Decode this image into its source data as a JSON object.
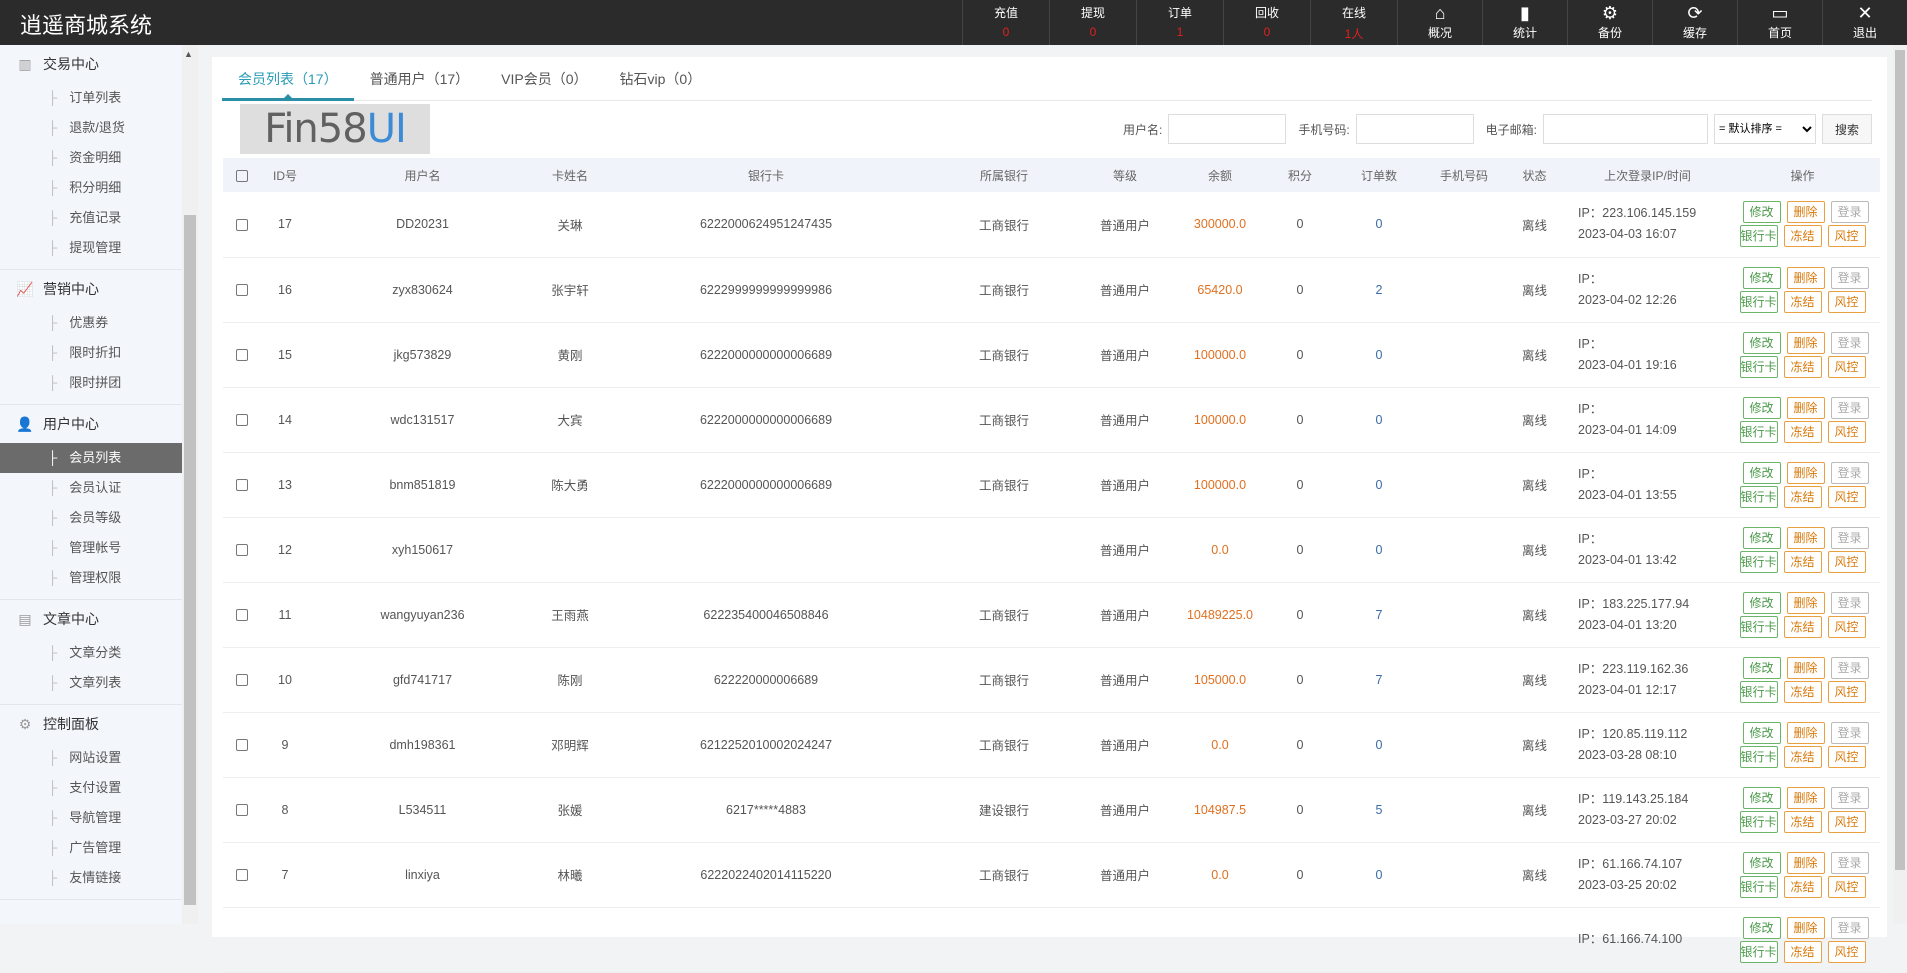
{
  "header": {
    "title": "逍遥商城系统",
    "stats": [
      {
        "label": "充值",
        "value": "0"
      },
      {
        "label": "提现",
        "value": "0"
      },
      {
        "label": "订单",
        "value": "1"
      },
      {
        "label": "回收",
        "value": "0"
      },
      {
        "label": "在线",
        "value": "1人"
      }
    ],
    "tools": [
      {
        "icon": "home-icon",
        "glyph": "⌂",
        "label": "概况"
      },
      {
        "icon": "bar-chart-icon",
        "glyph": "▮",
        "label": "统计"
      },
      {
        "icon": "gear-icon",
        "glyph": "⚙",
        "label": "备份"
      },
      {
        "icon": "refresh-icon",
        "glyph": "⟳",
        "label": "缓存"
      },
      {
        "icon": "monitor-icon",
        "glyph": "▭",
        "label": "首页"
      },
      {
        "icon": "close-icon",
        "glyph": "✕",
        "label": "退出"
      }
    ]
  },
  "sidebar": {
    "groups": [
      {
        "icon": "bar-chart-icon",
        "glyph": "▥",
        "title": "交易中心",
        "items": [
          "订单列表",
          "退款/退货",
          "资金明细",
          "积分明细",
          "充值记录",
          "提现管理"
        ]
      },
      {
        "icon": "trend-chart-icon",
        "glyph": "📈",
        "title": "营销中心",
        "items": [
          "优惠券",
          "限时折扣",
          "限时拼团"
        ]
      },
      {
        "icon": "user-icon",
        "glyph": "👤",
        "title": "用户中心",
        "items": [
          "会员列表",
          "会员认证",
          "会员等级",
          "管理帐号",
          "管理权限"
        ]
      },
      {
        "icon": "document-icon",
        "glyph": "▤",
        "title": "文章中心",
        "items": [
          "文章分类",
          "文章列表"
        ]
      },
      {
        "icon": "gear-icon",
        "glyph": "⚙",
        "title": "控制面板",
        "items": [
          "网站设置",
          "支付设置",
          "导航管理",
          "广告管理",
          "友情链接"
        ]
      }
    ],
    "active": "会员列表"
  },
  "tabs": [
    "会员列表（17）",
    "普通用户（17）",
    "VIP会员（0）",
    "钻石vip（0）"
  ],
  "search": {
    "username_label": "用户名:",
    "phone_label": "手机号码:",
    "email_label": "电子邮箱:",
    "username": "",
    "phone": "",
    "email": "",
    "sort": "= 默认排序 =",
    "button": "搜索"
  },
  "table": {
    "headers": [
      "ID号",
      "用户名",
      "卡姓名",
      "银行卡",
      "所属银行",
      "等级",
      "余额",
      "积分",
      "订单数",
      "手机号码",
      "状态",
      "上次登录IP/时间",
      "操作"
    ],
    "actions": [
      "修改",
      "删除",
      "登录",
      "银行卡",
      "冻结",
      "风控"
    ],
    "rows": [
      {
        "id": "17",
        "username": "DD20231",
        "name": "关琳",
        "card": "6222000624951247435",
        "bank": "工商银行",
        "level": "普通用户",
        "balance": "300000.0",
        "points": "0",
        "orders": "0",
        "phone": "",
        "status": "离线",
        "ip": "IP：223.106.145.159",
        "time": "2023-04-03 16:07"
      },
      {
        "id": "16",
        "username": "zyx830624",
        "name": "张宇轩",
        "card": "6222999999999999986",
        "bank": "工商银行",
        "level": "普通用户",
        "balance": "65420.0",
        "points": "0",
        "orders": "2",
        "phone": "",
        "status": "离线",
        "ip": "IP：",
        "time": "2023-04-02 12:26"
      },
      {
        "id": "15",
        "username": "jkg573829",
        "name": "黄刚",
        "card": "6222000000000006689",
        "bank": "工商银行",
        "level": "普通用户",
        "balance": "100000.0",
        "points": "0",
        "orders": "0",
        "phone": "",
        "status": "离线",
        "ip": "IP：",
        "time": "2023-04-01 19:16"
      },
      {
        "id": "14",
        "username": "wdc131517",
        "name": "大宾",
        "card": "6222000000000006689",
        "bank": "工商银行",
        "level": "普通用户",
        "balance": "100000.0",
        "points": "0",
        "orders": "0",
        "phone": "",
        "status": "离线",
        "ip": "IP：",
        "time": "2023-04-01 14:09"
      },
      {
        "id": "13",
        "username": "bnm851819",
        "name": "陈大勇",
        "card": "6222000000000006689",
        "bank": "工商银行",
        "level": "普通用户",
        "balance": "100000.0",
        "points": "0",
        "orders": "0",
        "phone": "",
        "status": "离线",
        "ip": "IP：",
        "time": "2023-04-01 13:55"
      },
      {
        "id": "12",
        "username": "xyh150617",
        "name": "",
        "card": "",
        "bank": "",
        "level": "普通用户",
        "balance": "0.0",
        "points": "0",
        "orders": "0",
        "phone": "",
        "status": "离线",
        "ip": "IP：",
        "time": "2023-04-01 13:42"
      },
      {
        "id": "11",
        "username": "wangyuyan236",
        "name": "王雨燕",
        "card": "622235400046508846",
        "bank": "工商银行",
        "level": "普通用户",
        "balance": "10489225.0",
        "points": "0",
        "orders": "7",
        "phone": "",
        "status": "离线",
        "ip": "IP：183.225.177.94",
        "time": "2023-04-01 13:20"
      },
      {
        "id": "10",
        "username": "gfd741717",
        "name": "陈刚",
        "card": "622220000006689",
        "bank": "工商银行",
        "level": "普通用户",
        "balance": "105000.0",
        "points": "0",
        "orders": "7",
        "phone": "",
        "status": "离线",
        "ip": "IP：223.119.162.36",
        "time": "2023-04-01 12:17"
      },
      {
        "id": "9",
        "username": "dmh198361",
        "name": "邓明辉",
        "card": "6212252010002024247",
        "bank": "工商银行",
        "level": "普通用户",
        "balance": "0.0",
        "points": "0",
        "orders": "0",
        "phone": "",
        "status": "离线",
        "ip": "IP：120.85.119.112",
        "time": "2023-03-28 08:10"
      },
      {
        "id": "8",
        "username": "L534511",
        "name": "张媛",
        "card": "6217*****4883",
        "bank": "建设银行",
        "level": "普通用户",
        "balance": "104987.5",
        "points": "0",
        "orders": "5",
        "phone": "",
        "status": "离线",
        "ip": "IP：119.143.25.184",
        "time": "2023-03-27 20:02"
      },
      {
        "id": "7",
        "username": "linxiya",
        "name": "林曦",
        "card": "6222022402014115220",
        "bank": "工商银行",
        "level": "普通用户",
        "balance": "0.0",
        "points": "0",
        "orders": "0",
        "phone": "",
        "status": "离线",
        "ip": "IP：61.166.74.107",
        "time": "2023-03-25 20:02"
      },
      {
        "id": "",
        "username": "",
        "name": "",
        "card": "",
        "bank": "",
        "level": "",
        "balance": "",
        "points": "",
        "orders": "",
        "phone": "",
        "status": "",
        "ip": "IP：61.166.74.100",
        "time": ""
      }
    ]
  },
  "watermark": {
    "text_a": "Fin58",
    "text_b": "UI"
  },
  "colors": {
    "header_bg": "#2b2b2b",
    "accent": "#2a9bb5",
    "balance": "#e07020",
    "orders": "#3a6aa8",
    "stat_value": "#e02020"
  }
}
